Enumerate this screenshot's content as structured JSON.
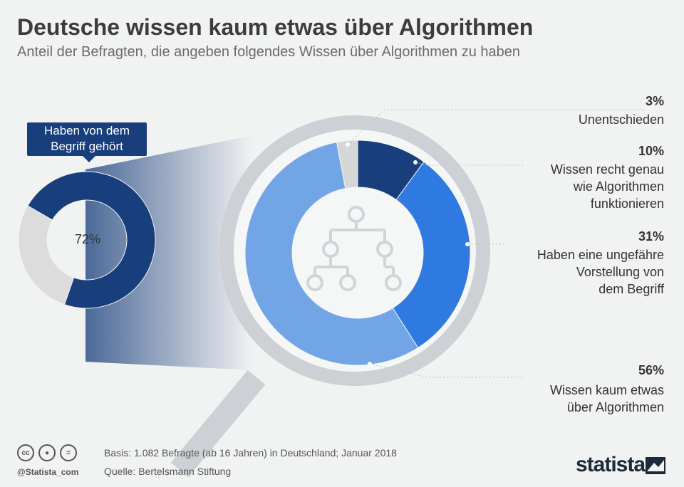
{
  "header": {
    "title": "Deutsche wissen kaum etwas über Algorithmen",
    "subtitle": "Anteil der Befragten, die angeben folgendes Wissen über Algorithmen zu haben"
  },
  "callout": {
    "line1": "Haben von dem",
    "line2": "Begriff gehört",
    "value_label": "72%"
  },
  "legend": [
    {
      "pct": "3%",
      "lines": [
        "Unentschieden"
      ]
    },
    {
      "pct": "10%",
      "lines": [
        "Wissen recht genau",
        "wie Algorithmen",
        "funktionieren"
      ]
    },
    {
      "pct": "31%",
      "lines": [
        "Haben eine ungefähre",
        "Vorstellung von",
        "dem Begriff"
      ]
    },
    {
      "pct": "56%",
      "lines": [
        "Wissen kaum etwas",
        "über Algorithmen"
      ]
    }
  ],
  "footer": {
    "basis": "Basis: 1.082 Befragte (ab 16 Jahren) in Deutschland; Januar 2018",
    "source": "Quelle: Bertelsmann Stiftung",
    "handle": "@Statista_com",
    "brand": "statista",
    "license_icons": [
      "cc-icon",
      "by-icon",
      "nd-icon"
    ]
  },
  "chart_data": [
    {
      "type": "pie",
      "title": "Haben von dem Begriff gehört",
      "categories": [
        "Haben von dem Begriff gehört",
        ""
      ],
      "values": [
        72,
        28
      ],
      "colors": [
        "#183f7c",
        "#dcdcdc"
      ]
    },
    {
      "type": "pie",
      "categories": [
        "Unentschieden",
        "Wissen recht genau wie Algorithmen funktionieren",
        "Haben eine ungefähre Vorstellung von dem Begriff",
        "Wissen kaum etwas über Algorithmen"
      ],
      "values": [
        3,
        10,
        31,
        56
      ],
      "colors": [
        "#d6d6d6",
        "#183f7c",
        "#2f7ae0",
        "#72a5e6"
      ]
    }
  ],
  "colors": {
    "background": "#f1f2f2",
    "dark_blue": "#183f7c",
    "mid_blue": "#2f7ae0",
    "light_blue": "#72a5e6",
    "grey": "#d6d6d6"
  }
}
